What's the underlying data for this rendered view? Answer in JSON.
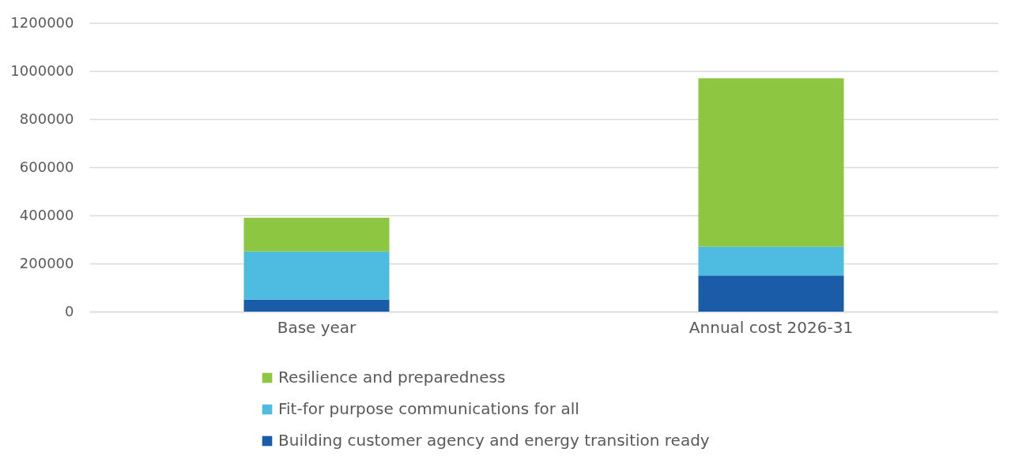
{
  "chart_data": {
    "type": "bar",
    "stacked": true,
    "categories": [
      "Base year",
      "Annual cost 2026-31"
    ],
    "series": [
      {
        "name": "Building customer agency and energy transition ready",
        "color": "#1a5ca8",
        "values": [
          50000,
          150000
        ]
      },
      {
        "name": "Fit-for purpose communications for all",
        "color": "#4ebbe0",
        "values": [
          200000,
          120000
        ]
      },
      {
        "name": "Resilience and preparedness",
        "color": "#8dc641",
        "values": [
          140000,
          700000
        ]
      }
    ],
    "ylim": [
      0,
      1200000
    ],
    "yticks": [
      0,
      200000,
      400000,
      600000,
      800000,
      1000000,
      1200000
    ],
    "grid": "y",
    "legend": "bottom"
  }
}
